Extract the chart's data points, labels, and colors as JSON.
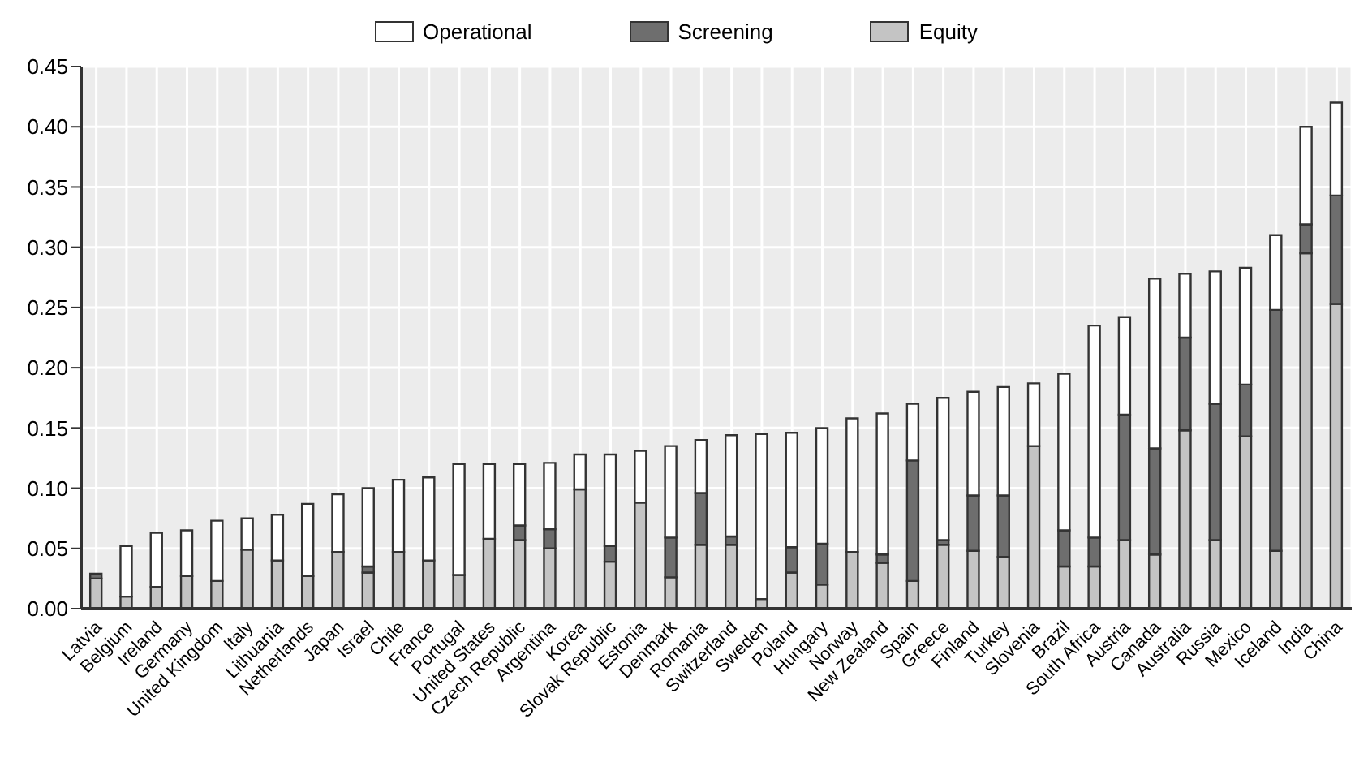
{
  "chart_data": {
    "type": "bar",
    "stacked": true,
    "legend": "top",
    "grid": true,
    "categories": [
      "Latvia",
      "Belgium",
      "Ireland",
      "Germany",
      "United Kingdom",
      "Italy",
      "Lithuania",
      "Netherlands",
      "Japan",
      "Israel",
      "Chile",
      "France",
      "Portugal",
      "United States",
      "Czech Republic",
      "Argentina",
      "Korea",
      "Slovak Republic",
      "Estonia",
      "Denmark",
      "Romania",
      "Switzerland",
      "Sweden",
      "Poland",
      "Hungary",
      "Norway",
      "New Zealand",
      "Spain",
      "Greece",
      "Finland",
      "Turkey",
      "Slovenia",
      "Brazil",
      "South Africa",
      "Austria",
      "Canada",
      "Australia",
      "Russia",
      "Mexico",
      "Iceland",
      "India",
      "China"
    ],
    "series": [
      {
        "name": "Equity",
        "color": "#c4c4c4",
        "values": [
          0.025,
          0.01,
          0.018,
          0.027,
          0.023,
          0.049,
          0.04,
          0.027,
          0.047,
          0.03,
          0.047,
          0.04,
          0.028,
          0.058,
          0.057,
          0.05,
          0.099,
          0.039,
          0.088,
          0.026,
          0.053,
          0.053,
          0.008,
          0.03,
          0.02,
          0.047,
          0.038,
          0.023,
          0.053,
          0.048,
          0.043,
          0.135,
          0.035,
          0.035,
          0.057,
          0.045,
          0.148,
          0.057,
          0.143,
          0.048,
          0.295,
          0.253
        ]
      },
      {
        "name": "Screening",
        "color": "#6e6e6e",
        "values": [
          0.004,
          0,
          0,
          0,
          0,
          0,
          0,
          0,
          0,
          0.005,
          0,
          0,
          0,
          0,
          0.012,
          0.016,
          0,
          0.013,
          0,
          0.033,
          0.043,
          0.007,
          0,
          0.021,
          0.034,
          0,
          0.007,
          0.1,
          0.004,
          0.046,
          0.051,
          0,
          0.03,
          0.024,
          0.104,
          0.088,
          0.077,
          0.113,
          0.043,
          0.2,
          0.024,
          0.09
        ]
      },
      {
        "name": "Operational",
        "color": "#ffffff",
        "values": [
          0,
          0.042,
          0.045,
          0.038,
          0.05,
          0.026,
          0.038,
          0.06,
          0.048,
          0.065,
          0.06,
          0.069,
          0.092,
          0.062,
          0.051,
          0.055,
          0.029,
          0.076,
          0.043,
          0.076,
          0.044,
          0.084,
          0.137,
          0.095,
          0.096,
          0.111,
          0.117,
          0.047,
          0.118,
          0.086,
          0.09,
          0.052,
          0.13,
          0.176,
          0.081,
          0.141,
          0.053,
          0.11,
          0.097,
          0.062,
          0.081,
          0.077
        ]
      }
    ],
    "ylim": [
      0,
      0.45
    ],
    "yticks": [
      {
        "value": 0,
        "label": "0.00"
      },
      {
        "value": 0.05,
        "label": "0.05"
      },
      {
        "value": 0.1,
        "label": "0.10"
      },
      {
        "value": 0.15,
        "label": "0.15"
      },
      {
        "value": 0.2,
        "label": "0.20"
      },
      {
        "value": 0.25,
        "label": "0.25"
      },
      {
        "value": 0.3,
        "label": "0.30"
      },
      {
        "value": 0.35,
        "label": "0.35"
      },
      {
        "value": 0.4,
        "label": "0.40"
      },
      {
        "value": 0.45,
        "label": "0.45"
      }
    ]
  }
}
